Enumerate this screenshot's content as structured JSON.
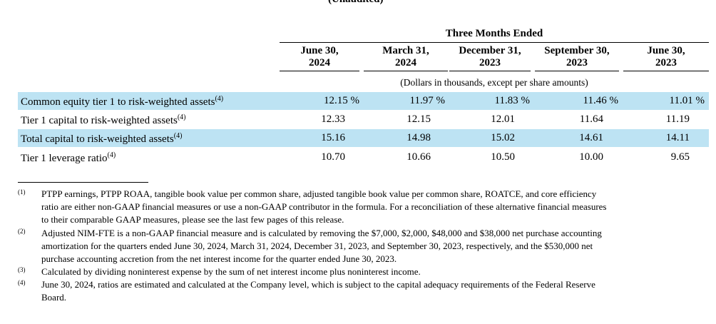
{
  "top_cut_text": "(Unaudited)",
  "group_header": "Three Months Ended",
  "columns": [
    {
      "line1": "June 30,",
      "line2": "2024"
    },
    {
      "line1": "March 31,",
      "line2": "2024"
    },
    {
      "line1": "December 31,",
      "line2": "2023"
    },
    {
      "line1": "September 30,",
      "line2": "2023"
    },
    {
      "line1": "June 30,",
      "line2": "2023"
    }
  ],
  "units_note": "(Dollars in thousands, except per share amounts)",
  "rows": [
    {
      "label": "Common equity tier 1 to risk-weighted assets",
      "note": "(4)",
      "values": [
        "12.15 %",
        "11.97 %",
        "11.83 %",
        "11.46 %",
        "11.01 %"
      ]
    },
    {
      "label": "Tier 1 capital to risk-weighted assets",
      "note": "(4)",
      "values": [
        "12.33",
        "12.15",
        "12.01",
        "11.64",
        "11.19"
      ]
    },
    {
      "label": "Total capital to risk-weighted assets",
      "note": "(4)",
      "values": [
        "15.16",
        "14.98",
        "15.02",
        "14.61",
        "14.11"
      ]
    },
    {
      "label": "Tier 1 leverage ratio",
      "note": "(4)",
      "values": [
        "10.70",
        "10.66",
        "10.50",
        "10.00",
        "9.65"
      ]
    }
  ],
  "footnotes": [
    {
      "mark": "(1)",
      "lines": [
        "PTPP earnings, PTPP ROAA, tangible book value per common share, adjusted tangible book value per common share, ROATCE, and core efficiency",
        "ratio are either non-GAAP financial measures or use a non-GAAP contributor in the formula. For a reconciliation of these alternative financial measures",
        "to their comparable GAAP measures, please see the last few pages of this release."
      ]
    },
    {
      "mark": "(2)",
      "lines": [
        "Adjusted NIM-FTE is a non-GAAP financial measure and is calculated by removing the $7,000, $2,000, $48,000 and $38,000 net purchase accounting",
        "amortization for the quarters ended June 30, 2024, March 31, 2024, December 31, 2023, and September 30, 2023, respectively, and the $530,000 net",
        "purchase accounting accretion from the net interest income for the quarter ended June 30, 2023."
      ]
    },
    {
      "mark": "(3)",
      "lines": [
        "Calculated by dividing noninterest expense by the sum of net interest income plus noninterest income."
      ]
    },
    {
      "mark": "(4)",
      "lines": [
        "June 30, 2024, ratios are estimated and calculated at the Company level, which is subject to the capital adequacy requirements of the Federal Reserve",
        "Board."
      ]
    }
  ]
}
